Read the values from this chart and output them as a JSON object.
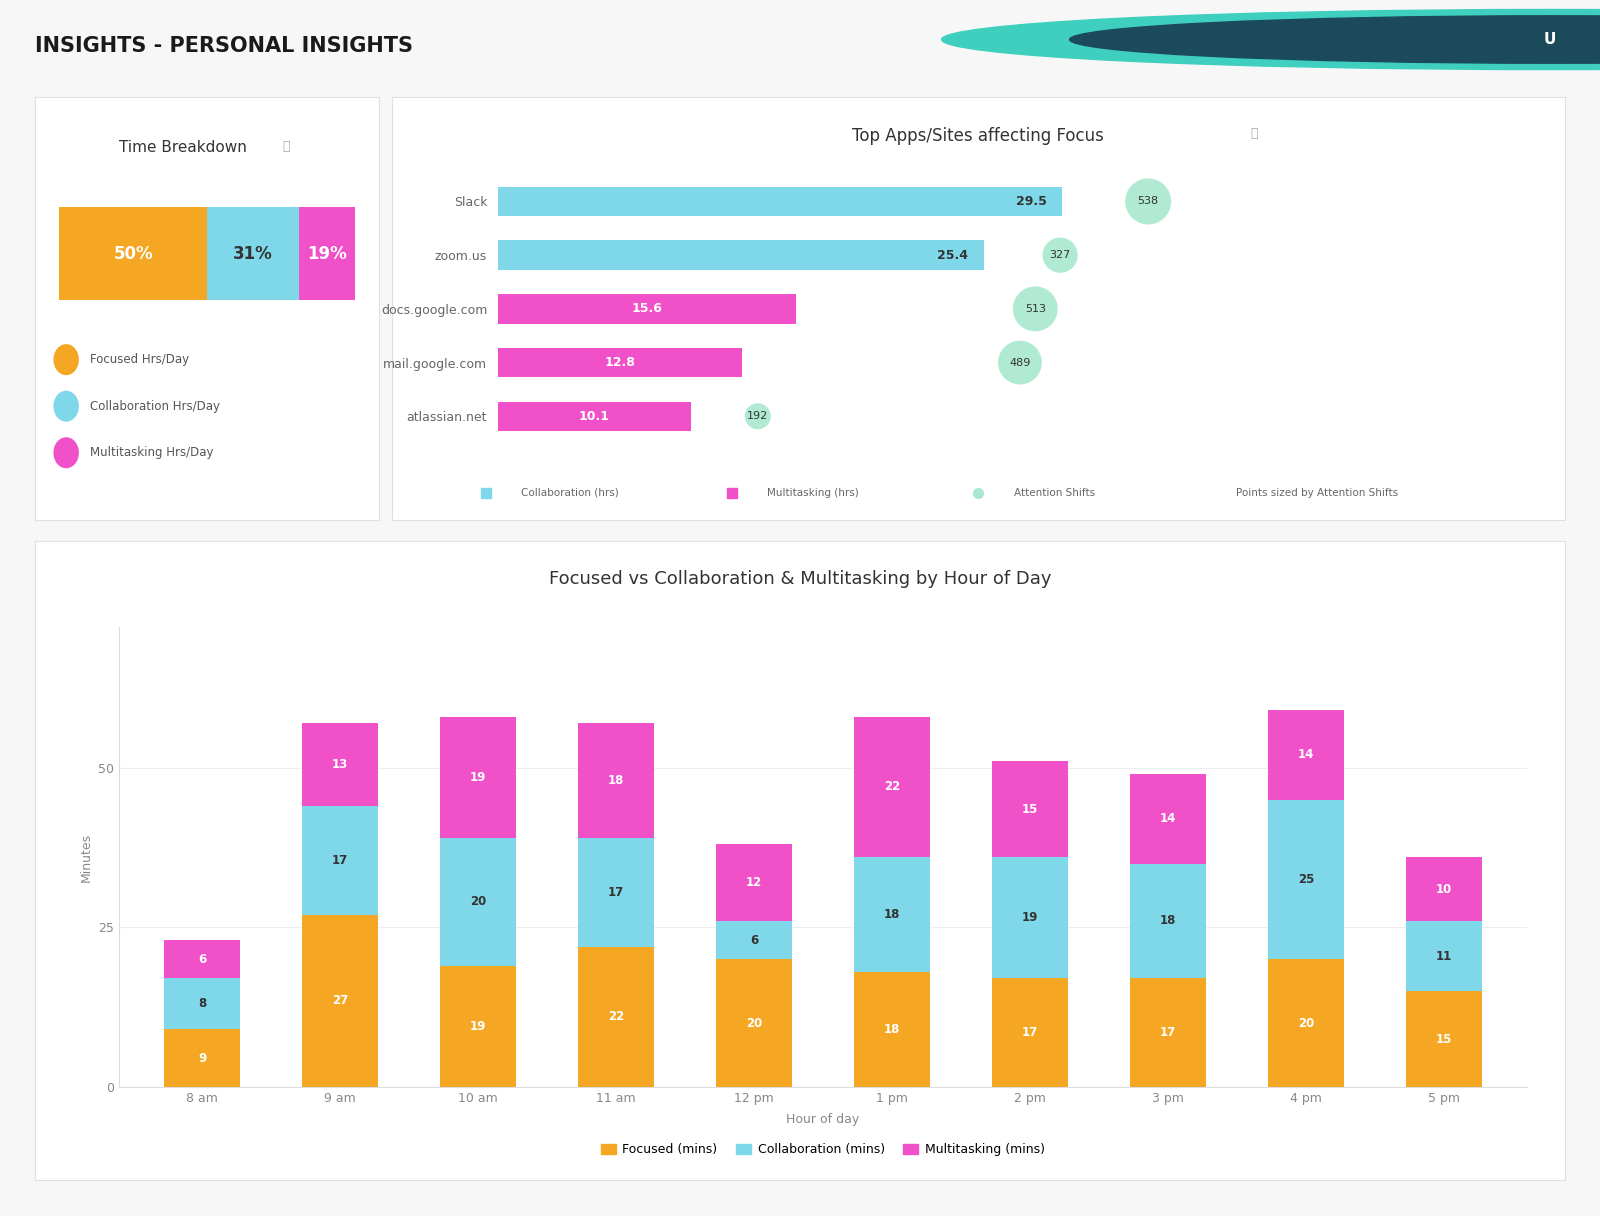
{
  "title": "INSIGHTS - PERSONAL INSIGHTS",
  "bg_color": "#f7f7f7",
  "card_color": "#ffffff",
  "header_color": "#ffffff",
  "separator_color": "#e0e0e0",
  "time_breakdown_title": "Time Breakdown",
  "tb_values": [
    50,
    31,
    19
  ],
  "tb_labels": [
    "50%",
    "31%",
    "19%"
  ],
  "tb_colors": [
    "#F5A623",
    "#7FD8EA",
    "#F050C8"
  ],
  "tb_legend": [
    "Focused Hrs/Day",
    "Collaboration Hrs/Day",
    "Multitasking Hrs/Day"
  ],
  "tb_legend_colors": [
    "#F5A623",
    "#7FD8EA",
    "#F050C8"
  ],
  "top_apps_title": "Top Apps/Sites affecting Focus",
  "apps": [
    "Slack",
    "zoom.us",
    "docs.google.com",
    "mail.google.com",
    "atlassian.net"
  ],
  "collab_hrs": [
    29.5,
    25.4,
    0.0,
    0.0,
    0.0
  ],
  "multitask_hrs": [
    0.0,
    0.0,
    15.6,
    12.8,
    10.1
  ],
  "attention_shifts": [
    538,
    327,
    513,
    489,
    192
  ],
  "collab_color": "#7FD8EA",
  "multitask_color": "#F050C8",
  "attn_color": "#A8E8CE",
  "apps_legend": [
    "Collaboration (hrs)",
    "Multitasking (hrs)",
    "Attention Shifts",
    "Points sized by Attention Shifts"
  ],
  "bar_chart_title": "Focused vs Collaboration & Multitasking by Hour of Day",
  "hours": [
    "8 am",
    "9 am",
    "10 am",
    "11 am",
    "12 pm",
    "1 pm",
    "2 pm",
    "3 pm",
    "4 pm",
    "5 pm"
  ],
  "focused": [
    9,
    27,
    19,
    22,
    20,
    18,
    17,
    17,
    20,
    15
  ],
  "collaboration": [
    8,
    17,
    20,
    17,
    6,
    18,
    19,
    18,
    25,
    11
  ],
  "multitasking": [
    6,
    13,
    19,
    18,
    12,
    22,
    15,
    14,
    14,
    10
  ],
  "focused_color": "#F5A623",
  "collab_bar_color": "#7FD8EA",
  "multi_bar_color": "#F050C8",
  "bar_legend": [
    "Focused (mins)",
    "Collaboration (mins)",
    "Multitasking (mins)"
  ],
  "xlabel": "Hour of day",
  "ylabel": "Minutes",
  "user_icon_bg": "#1B4B5A",
  "user_letter": "U",
  "user_icon_ring": "#3ECFBF"
}
